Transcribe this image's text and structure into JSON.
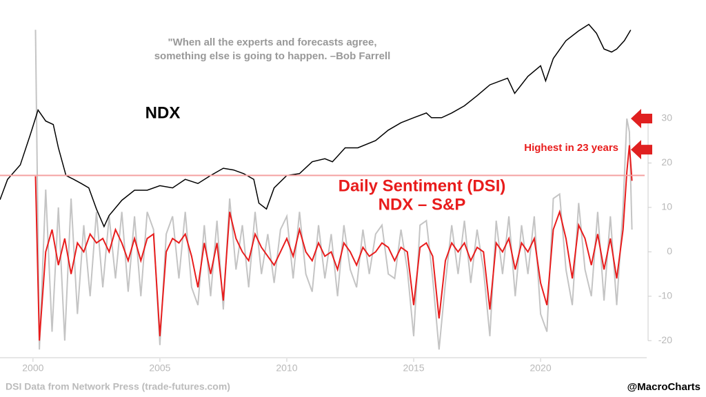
{
  "chart_data": {
    "type": "line",
    "quote": [
      "\"When all the experts and forecasts agree,",
      "something else is going to happen. –Bob Farrell"
    ],
    "ndx_label": "NDX",
    "dsi_label": [
      "Daily Sentiment (DSI)",
      "NDX – S&P"
    ],
    "annotation": "Highest in 23 years",
    "source": "DSI Data from Network Press (trade-futures.com)",
    "credit": "@MacroCharts",
    "xlim": [
      1998.7,
      2024.1
    ],
    "xticks": [
      2000,
      2005,
      2010,
      2015,
      2020
    ],
    "ylim": [
      -24,
      56.7
    ],
    "yticks": [
      -20,
      -10,
      0,
      10,
      20,
      30
    ],
    "y2lim": [
      123,
      23600
    ],
    "y2log": true,
    "hline": 17.2,
    "hline_color": "#f4a0a0",
    "arrows": [
      30,
      23
    ],
    "arrow_color": "#e02020",
    "x": [
      2000.1,
      2000.25,
      2000.5,
      2000.75,
      2001.0,
      2001.25,
      2001.5,
      2001.75,
      2002.0,
      2002.25,
      2002.5,
      2002.75,
      2003.0,
      2003.25,
      2003.5,
      2003.75,
      2004.0,
      2004.25,
      2004.5,
      2004.75,
      2005.0,
      2005.25,
      2005.5,
      2005.75,
      2006.0,
      2006.25,
      2006.5,
      2006.75,
      2007.0,
      2007.25,
      2007.5,
      2007.75,
      2008.0,
      2008.25,
      2008.5,
      2008.75,
      2009.0,
      2009.25,
      2009.5,
      2009.75,
      2010.0,
      2010.25,
      2010.5,
      2010.75,
      2011.0,
      2011.25,
      2011.5,
      2011.75,
      2012.0,
      2012.25,
      2012.5,
      2012.75,
      2013.0,
      2013.25,
      2013.5,
      2013.75,
      2014.0,
      2014.25,
      2014.5,
      2014.75,
      2015.0,
      2015.25,
      2015.5,
      2015.75,
      2016.0,
      2016.25,
      2016.5,
      2016.75,
      2017.0,
      2017.25,
      2017.5,
      2017.75,
      2018.0,
      2018.25,
      2018.5,
      2018.75,
      2019.0,
      2019.25,
      2019.5,
      2019.75,
      2020.0,
      2020.25,
      2020.5,
      2020.75,
      2021.0,
      2021.25,
      2021.5,
      2021.75,
      2022.0,
      2022.25,
      2022.5,
      2022.75,
      2023.0,
      2023.25,
      2023.4,
      2023.5,
      2023.6
    ],
    "series": [
      {
        "color": "#c4c4c4",
        "values": [
          50,
          -22,
          14,
          -18,
          10,
          -20,
          12,
          -14,
          6,
          -10,
          9,
          -8,
          8,
          -6,
          9,
          -9,
          8,
          -10,
          9,
          5,
          -21,
          4,
          8,
          -6,
          9,
          -8,
          -12,
          6,
          -10,
          7,
          -13,
          12,
          -4,
          6,
          -8,
          9,
          -5,
          4,
          -7,
          5,
          8,
          -6,
          9,
          -5,
          -9,
          6,
          -6,
          4,
          -10,
          6,
          -4,
          -8,
          5,
          -5,
          4,
          6,
          -5,
          -6,
          5,
          -4,
          -19,
          6,
          7,
          -6,
          -22,
          -7,
          6,
          -5,
          7,
          -7,
          5,
          -4,
          -19,
          7,
          -5,
          8,
          -10,
          6,
          -5,
          8,
          -14,
          -18,
          12,
          13,
          -4,
          -12,
          11,
          -4,
          -10,
          9,
          -11,
          8,
          -12,
          10,
          30,
          27,
          5
        ]
      },
      {
        "color": "#e81c1c",
        "values": [
          17,
          -20,
          0,
          5,
          -3,
          3,
          -5,
          2,
          0,
          4,
          2,
          3,
          0,
          5,
          2,
          -2,
          3,
          -2,
          3,
          4,
          -19,
          0,
          3,
          2,
          4,
          -1,
          -8,
          2,
          -5,
          2,
          -11,
          9,
          3,
          0,
          -2,
          4,
          1,
          -1,
          -3,
          0,
          3,
          -1,
          5,
          0,
          -2,
          2,
          -1,
          0,
          -4,
          2,
          0,
          -3,
          1,
          -1,
          0,
          2,
          1,
          -2,
          1,
          0,
          -12,
          1,
          2,
          -1,
          -15,
          -2,
          2,
          0,
          2,
          -2,
          1,
          0,
          -13,
          2,
          0,
          3,
          -4,
          2,
          0,
          3,
          -7,
          -12,
          5,
          9,
          3,
          -6,
          6,
          3,
          -3,
          4,
          -4,
          3,
          -6,
          5,
          18,
          24,
          16
        ]
      },
      {
        "color": "#000000",
        "axis": "y2",
        "x": [
          1998.7,
          1999.0,
          1999.5,
          1999.9,
          2000.2,
          2000.5,
          2000.8,
          2001.0,
          2001.3,
          2001.6,
          2001.9,
          2002.2,
          2002.5,
          2002.8,
          2003.0,
          2003.5,
          2004.0,
          2004.5,
          2005.0,
          2005.5,
          2006.0,
          2006.5,
          2007.0,
          2007.5,
          2007.9,
          2008.3,
          2008.7,
          2008.9,
          2009.2,
          2009.5,
          2010.0,
          2010.5,
          2011.0,
          2011.5,
          2011.8,
          2012.3,
          2012.8,
          2013.5,
          2014.0,
          2014.5,
          2015.0,
          2015.5,
          2015.7,
          2016.1,
          2016.5,
          2017.0,
          2017.5,
          2018.0,
          2018.7,
          2018.98,
          2019.5,
          2020.0,
          2020.2,
          2020.5,
          2021.0,
          2021.5,
          2021.9,
          2022.2,
          2022.5,
          2022.8,
          2023.0,
          2023.3,
          2023.55
        ],
        "values": [
          1260,
          1700,
          2100,
          3300,
          4700,
          4000,
          3800,
          2700,
          1800,
          1700,
          1600,
          1500,
          1100,
          850,
          1000,
          1250,
          1450,
          1450,
          1550,
          1500,
          1700,
          1600,
          1800,
          2000,
          1950,
          1850,
          1700,
          1200,
          1100,
          1500,
          1800,
          1850,
          2200,
          2300,
          2200,
          2700,
          2700,
          3000,
          3500,
          3900,
          4200,
          4500,
          4200,
          4200,
          4500,
          5000,
          5800,
          6800,
          7500,
          6000,
          7700,
          9000,
          7200,
          10000,
          13000,
          15000,
          16500,
          14500,
          11500,
          11000,
          11500,
          13000,
          15200
        ]
      }
    ]
  }
}
